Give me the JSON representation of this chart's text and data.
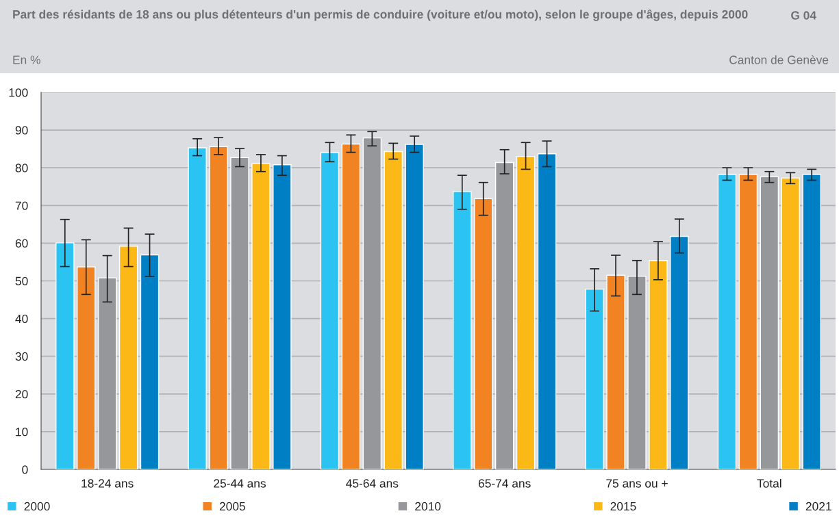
{
  "chart_data": {
    "type": "bar",
    "title": "Part des résidants de 18 ans ou plus détenteurs d'un permis de conduire (voiture et/ou moto), selon le groupe d'âges, depuis 2000",
    "subtitle": "En %",
    "annotations": [
      "G 04",
      "Canton de Genève"
    ],
    "categories": [
      "18-24 ans",
      "25-44 ans",
      "45-64 ans",
      "65-74 ans",
      "75 ans ou +",
      "Total"
    ],
    "series": [
      {
        "name": "2000",
        "color": "#2bc4f2",
        "values": [
          60.1,
          85.3,
          84.0,
          73.7,
          47.8,
          78.2
        ],
        "errors": [
          [
            53.8,
            66.3
          ],
          [
            83.2,
            87.7
          ],
          [
            81.6,
            86.7
          ],
          [
            69.0,
            78.0
          ],
          [
            42.0,
            53.2
          ],
          [
            76.7,
            80.0
          ]
        ]
      },
      {
        "name": "2005",
        "color": "#f28322",
        "values": [
          53.7,
          85.6,
          86.3,
          71.8,
          51.5,
          78.2
        ],
        "errors": [
          [
            46.4,
            60.9
          ],
          [
            83.5,
            88.0
          ],
          [
            84.1,
            88.7
          ],
          [
            67.4,
            76.1
          ],
          [
            46.0,
            56.8
          ],
          [
            76.7,
            80.0
          ]
        ]
      },
      {
        "name": "2010",
        "color": "#96979b",
        "values": [
          50.8,
          82.7,
          87.9,
          81.4,
          51.2,
          77.6
        ],
        "errors": [
          [
            44.4,
            56.7
          ],
          [
            80.3,
            85.1
          ],
          [
            85.8,
            89.6
          ],
          [
            78.4,
            84.8
          ],
          [
            46.4,
            55.4
          ],
          [
            76.1,
            79.0
          ]
        ]
      },
      {
        "name": "2015",
        "color": "#fbb817",
        "values": [
          59.2,
          81.1,
          84.3,
          83.0,
          55.4,
          77.3
        ],
        "errors": [
          [
            53.8,
            64.0
          ],
          [
            79.0,
            83.5
          ],
          [
            82.3,
            86.5
          ],
          [
            79.6,
            86.7
          ],
          [
            50.3,
            60.4
          ],
          [
            75.8,
            78.7
          ]
        ]
      },
      {
        "name": "2021",
        "color": "#007fc5",
        "values": [
          56.9,
          80.8,
          86.2,
          83.7,
          61.8,
          78.2
        ],
        "errors": [
          [
            51.2,
            62.4
          ],
          [
            78.0,
            83.2
          ],
          [
            84.1,
            88.4
          ],
          [
            80.3,
            87.1
          ],
          [
            57.4,
            66.4
          ],
          [
            76.7,
            79.6
          ]
        ]
      }
    ],
    "ylim": [
      0,
      100
    ],
    "yticks": [
      0,
      10,
      20,
      30,
      40,
      50,
      60,
      70,
      80,
      90,
      100
    ],
    "grid": "y",
    "legend": "bottom"
  }
}
